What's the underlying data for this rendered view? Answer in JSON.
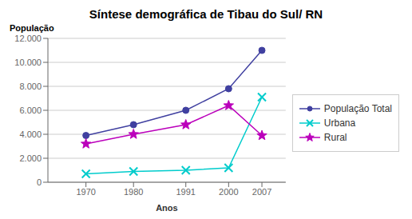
{
  "chart_data": {
    "type": "line",
    "title": "Síntese demográfica de Tibau do Sul/ RN",
    "x_label": "Anos",
    "y_label": "População",
    "x": [
      1970,
      1980,
      1991,
      2000,
      2007
    ],
    "series": [
      {
        "name": "População Total",
        "color": "#4040A0",
        "marker": "circle",
        "values": [
          3900,
          4800,
          6000,
          7800,
          11000
        ]
      },
      {
        "name": "Urbana",
        "color": "#00CCCC",
        "marker": "x",
        "values": [
          700,
          900,
          1000,
          1200,
          7100
        ]
      },
      {
        "name": "Rural",
        "color": "#BB00BB",
        "marker": "star",
        "values": [
          3200,
          4000,
          4800,
          6400,
          3900
        ]
      }
    ],
    "xlim": [
      1962,
      2012
    ],
    "xticks": [
      1970,
      1980,
      1991,
      2000,
      2007
    ],
    "ylim": [
      0,
      12000
    ],
    "yticks": [
      0,
      {
        "value": 2000,
        "label": "2.000"
      },
      {
        "value": 4000,
        "label": "4.000"
      },
      {
        "value": 6000,
        "label": "6.000"
      },
      {
        "value": 8000,
        "label": "8.000"
      },
      {
        "value": 10000,
        "label": "10.000"
      },
      {
        "value": 12000,
        "label": "12.000"
      }
    ],
    "grid": true,
    "legend": "right"
  }
}
